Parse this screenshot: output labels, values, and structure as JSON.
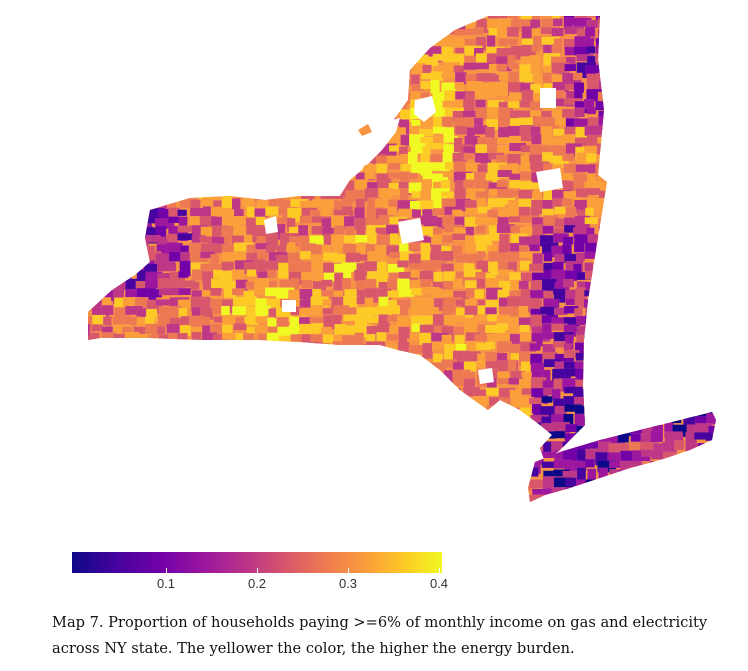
{
  "map": {
    "region": "NY state",
    "colormap": "plasma",
    "colors": {
      "low": "#0d0887",
      "mid_low": "#7201a8",
      "mid": "#cc4778",
      "mid_high": "#f89540",
      "high": "#f0f921",
      "missing": "#ffffff"
    }
  },
  "legend": {
    "min": 0.0,
    "max": 0.4,
    "ticks": [
      {
        "value": 0.1,
        "label": "0.1"
      },
      {
        "value": 0.2,
        "label": "0.2"
      },
      {
        "value": 0.3,
        "label": "0.3"
      },
      {
        "value": 0.4,
        "label": "0.4"
      }
    ]
  },
  "caption": {
    "line1": "Map 7. Proportion of households paying >=6% of monthly income on gas and electricity",
    "line2": "across NY state. The yellower the color, the higher the energy burden."
  }
}
